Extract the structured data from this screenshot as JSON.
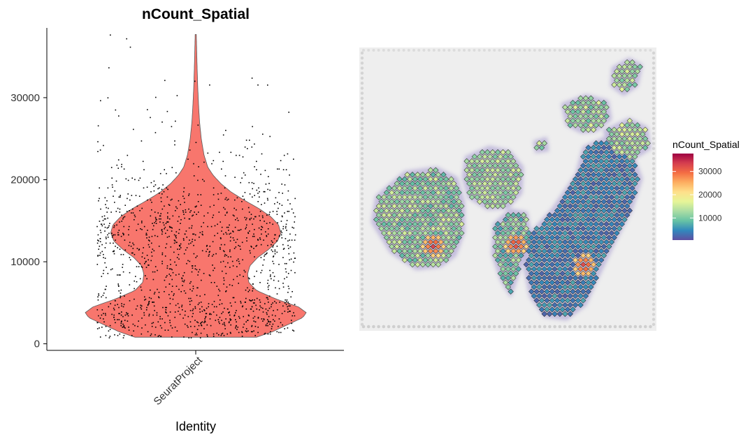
{
  "chart_data": [
    {
      "type": "violin",
      "title": "nCount_Spatial",
      "xlabel": "Identity",
      "ylabel": "",
      "categories": [
        "SeuratProject"
      ],
      "ylim": [
        -800,
        38500
      ],
      "yticks": [
        0,
        10000,
        20000,
        30000
      ],
      "ytick_labels": [
        "0",
        "10000",
        "20000",
        "30000"
      ],
      "grid": false,
      "fill_color": "#f8766d",
      "violin_min": 800,
      "violin_max": 37700,
      "density_profile": [
        [
          800,
          0.55
        ],
        [
          1500,
          0.7
        ],
        [
          2500,
          0.86
        ],
        [
          3200,
          0.97
        ],
        [
          3800,
          1.0
        ],
        [
          4500,
          0.93
        ],
        [
          5500,
          0.72
        ],
        [
          6500,
          0.55
        ],
        [
          7500,
          0.48
        ],
        [
          8500,
          0.47
        ],
        [
          9500,
          0.49
        ],
        [
          10500,
          0.56
        ],
        [
          11500,
          0.66
        ],
        [
          12500,
          0.74
        ],
        [
          13500,
          0.77
        ],
        [
          14500,
          0.75
        ],
        [
          15500,
          0.68
        ],
        [
          16500,
          0.57
        ],
        [
          17500,
          0.44
        ],
        [
          18500,
          0.32
        ],
        [
          19500,
          0.23
        ],
        [
          20500,
          0.16
        ],
        [
          21500,
          0.11
        ],
        [
          23000,
          0.075
        ],
        [
          25000,
          0.05
        ],
        [
          27000,
          0.035
        ],
        [
          29000,
          0.026
        ],
        [
          31000,
          0.019
        ],
        [
          33000,
          0.014
        ],
        [
          35000,
          0.01
        ],
        [
          37700,
          0.005
        ]
      ],
      "jitter_points_summary": "approximately 1400 spots, jittered across the category width"
    },
    {
      "type": "spatial_scatter",
      "title": "",
      "legend": {
        "title": "nCount_Spatial",
        "position": "right",
        "ticks": [
          10000,
          20000,
          30000
        ],
        "tick_labels": [
          "10000",
          "20000",
          "30000"
        ],
        "range": [
          500,
          37700
        ],
        "colormap": "Spectral (reversed)",
        "colors": [
          "#5e4fa2",
          "#3288bd",
          "#66c2a5",
          "#abdda4",
          "#e6f598",
          "#fee08b",
          "#fdae61",
          "#f46d43",
          "#d53e4f",
          "#9e0142"
        ]
      },
      "tissue_regions": [
        {
          "name": "left lobe",
          "spots_color_range": [
            8000,
            16000
          ],
          "hotspot": 30000
        },
        {
          "name": "middle lobe",
          "spots_color_range": [
            10000,
            16000
          ]
        },
        {
          "name": "upper right lobes",
          "spots_color_range": [
            9000,
            17000
          ]
        },
        {
          "name": "lower right tissue",
          "spots_color_range": [
            2000,
            7000
          ],
          "hotspot": 30000
        }
      ]
    }
  ]
}
